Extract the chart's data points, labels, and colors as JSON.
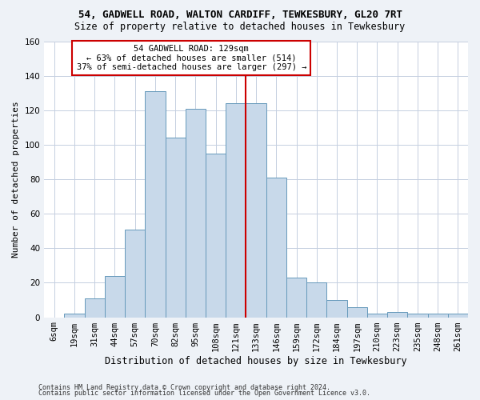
{
  "title1": "54, GADWELL ROAD, WALTON CARDIFF, TEWKESBURY, GL20 7RT",
  "title2": "Size of property relative to detached houses in Tewkesbury",
  "xlabel": "Distribution of detached houses by size in Tewkesbury",
  "ylabel": "Number of detached properties",
  "categories": [
    "6sqm",
    "19sqm",
    "31sqm",
    "44sqm",
    "57sqm",
    "70sqm",
    "82sqm",
    "95sqm",
    "108sqm",
    "121sqm",
    "133sqm",
    "146sqm",
    "159sqm",
    "172sqm",
    "184sqm",
    "197sqm",
    "210sqm",
    "223sqm",
    "235sqm",
    "248sqm",
    "261sqm"
  ],
  "values": [
    0,
    2,
    11,
    24,
    51,
    131,
    104,
    121,
    95,
    124,
    124,
    81,
    23,
    20,
    10,
    6,
    2,
    3,
    2,
    2,
    2
  ],
  "bar_color": "#c8d9ea",
  "bar_edge_color": "#6699bb",
  "ref_line_color": "#cc0000",
  "annotation_line0": "54 GADWELL ROAD: 129sqm",
  "annotation_line1": "← 63% of detached houses are smaller (514)",
  "annotation_line2": "37% of semi-detached houses are larger (297) →",
  "ylim": [
    0,
    160
  ],
  "yticks": [
    0,
    20,
    40,
    60,
    80,
    100,
    120,
    140,
    160
  ],
  "footer1": "Contains HM Land Registry data © Crown copyright and database right 2024.",
  "footer2": "Contains public sector information licensed under the Open Government Licence v3.0.",
  "bg_color": "#eef2f7",
  "plot_bg_color": "#ffffff",
  "grid_color": "#c5cfe0",
  "title_fontsize": 9,
  "subtitle_fontsize": 8.5,
  "ylabel_fontsize": 8,
  "xlabel_fontsize": 8.5,
  "tick_fontsize": 7.5,
  "annot_fontsize": 7.5,
  "footer_fontsize": 6
}
